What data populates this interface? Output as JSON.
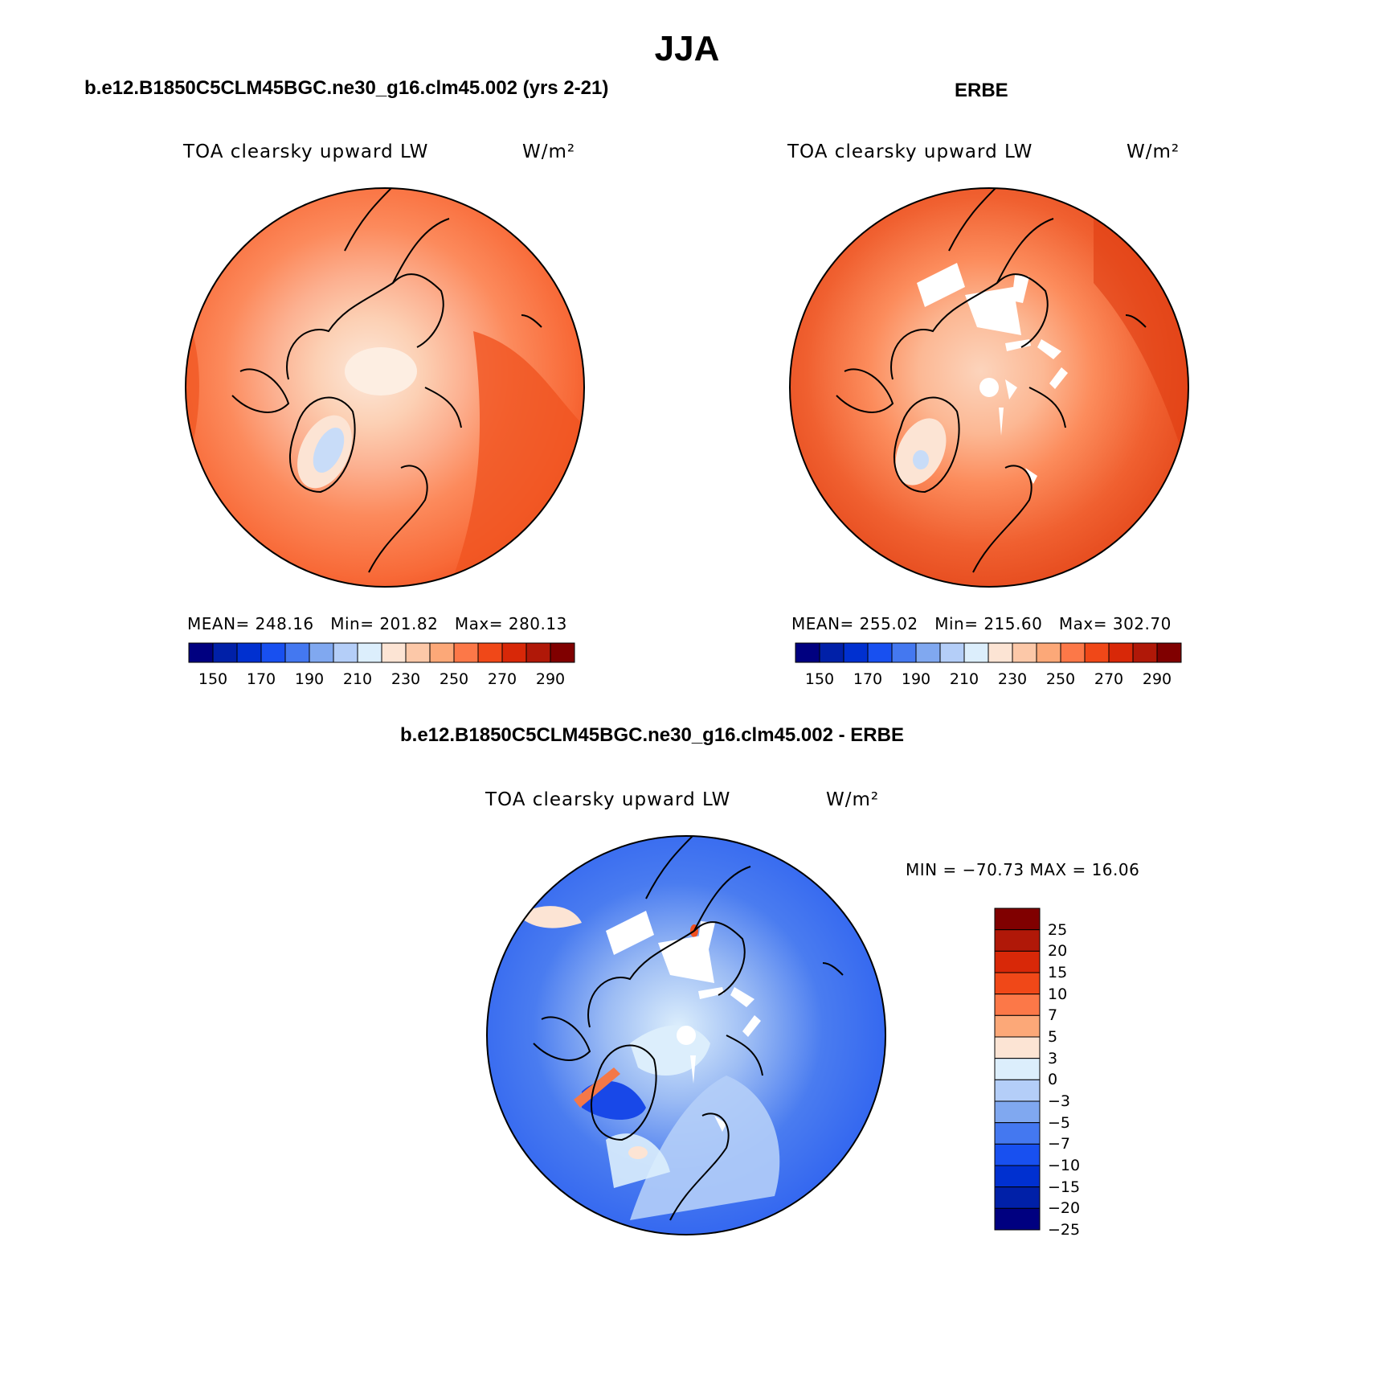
{
  "title": "JJA",
  "panels": {
    "model": {
      "title": "b.e12.B1850C5CLM45BGC.ne30_g16.clm45.002 (yrs 2-21)",
      "variable": "TOA clearsky upward LW",
      "units": "W/m²",
      "stats": {
        "mean_label": "MEAN=",
        "mean": "248.16",
        "min_label": "Min=",
        "min": "201.82",
        "max_label": "Max=",
        "max": "280.13"
      }
    },
    "obs": {
      "title": "ERBE",
      "variable": "TOA clearsky upward LW",
      "units": "W/m²",
      "stats": {
        "mean_label": "MEAN=",
        "mean": "255.02",
        "min_label": "Min=",
        "min": "215.60",
        "max_label": "Max=",
        "max": "302.70"
      }
    },
    "diff": {
      "title": "b.e12.B1850C5CLM45BGC.ne30_g16.clm45.002 - ERBE",
      "variable": "TOA clearsky upward LW",
      "units": "W/m²",
      "minmax": "MIN = −70.73 MAX =   16.06"
    }
  },
  "colorbars": {
    "absolute": {
      "colors": [
        "#000080",
        "#0020a8",
        "#0030d0",
        "#1850f0",
        "#4478f0",
        "#80a8f0",
        "#b4cef8",
        "#dceefc",
        "#fce4d4",
        "#fcc8a8",
        "#fca878",
        "#fc7848",
        "#f04818",
        "#d82808",
        "#b01808",
        "#800000"
      ],
      "tick_labels": [
        "150",
        "170",
        "190",
        "210",
        "230",
        "250",
        "270",
        "290"
      ]
    },
    "difference": {
      "colors": [
        "#800000",
        "#b01808",
        "#d82808",
        "#f04818",
        "#fc7848",
        "#fca878",
        "#fce4d4",
        "#dceefc",
        "#b4cef8",
        "#80a8f0",
        "#4478f0",
        "#1850f0",
        "#0030d0",
        "#0020a8",
        "#000080"
      ],
      "tick_labels": [
        "25",
        "20",
        "15",
        "10",
        "7",
        "5",
        "3",
        "0",
        "−3",
        "−5",
        "−7",
        "−10",
        "−15",
        "−20",
        "−25"
      ]
    }
  }
}
